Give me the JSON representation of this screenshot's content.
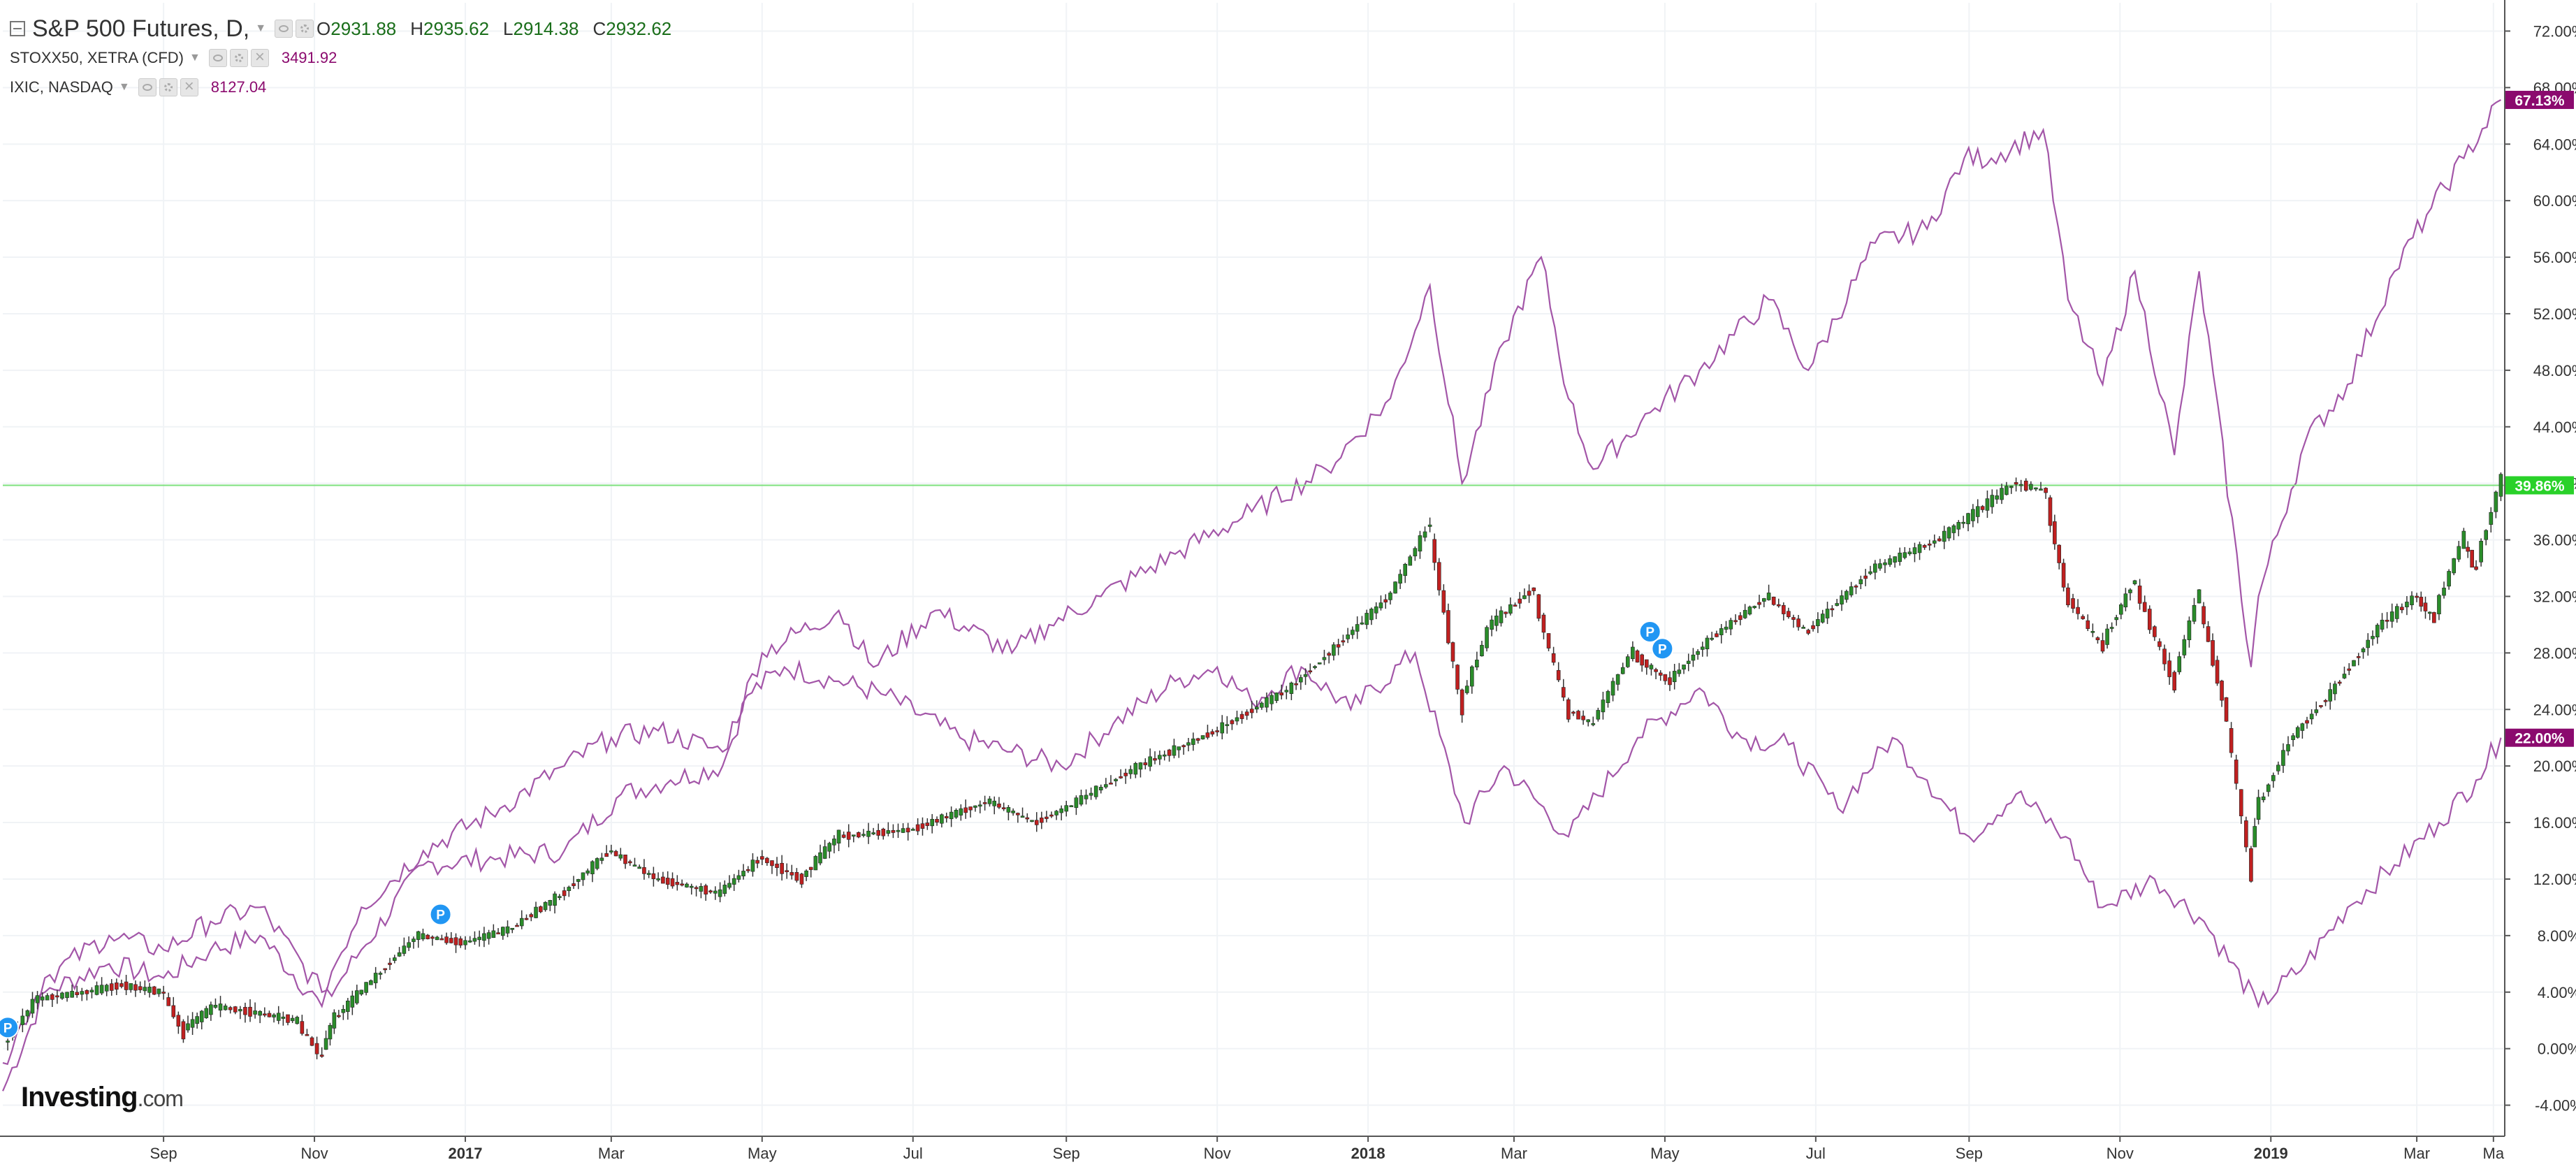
{
  "legend": {
    "main": {
      "title": "S&P 500 Futures, D,",
      "open_label": "O",
      "open": "2931.88",
      "high_label": "H",
      "high": "2935.62",
      "low_label": "L",
      "low": "2914.38",
      "close_label": "C",
      "close": "2932.62"
    },
    "compare1": {
      "name": "STOXX50, XETRA (CFD)",
      "value": "3491.92"
    },
    "compare2": {
      "name": "IXIC, NASDAQ",
      "value": "8127.04"
    }
  },
  "logo": {
    "brand": "Investing",
    "domain": ".com"
  },
  "colors": {
    "up": "#2a8c2a",
    "down": "#c02020",
    "compare_line": "#a356a8",
    "badge_purple": "#8b0a6e",
    "badge_green": "#29d129",
    "marker_blue": "#2196f3"
  },
  "chart_data": {
    "type": "line",
    "scale": "percent",
    "ylim": [
      -6,
      74
    ],
    "yticks": [
      -4,
      0,
      4,
      8,
      12,
      16,
      20,
      24,
      28,
      32,
      36,
      40,
      44,
      48,
      52,
      56,
      60,
      64,
      68,
      72
    ],
    "ytick_labels": [
      "-4.00%",
      "0.00%",
      "4.00%",
      "8.00%",
      "12.00%",
      "16.00%",
      "20.00%",
      "24.00%",
      "28.00%",
      "32.00%",
      "36.00%",
      "40.00%",
      "44.00%",
      "48.00%",
      "52.00%",
      "56.00%",
      "60.00%",
      "64.00%",
      "68.00%",
      "72.00%"
    ],
    "xlim": [
      "2016-06-28",
      "2019-04-05"
    ],
    "xticks": [
      {
        "date": "2016-09-01",
        "label": "Sep",
        "bold": false
      },
      {
        "date": "2016-11-01",
        "label": "Nov",
        "bold": false
      },
      {
        "date": "2017-01-01",
        "label": "2017",
        "bold": true
      },
      {
        "date": "2017-03-01",
        "label": "Mar",
        "bold": false
      },
      {
        "date": "2017-05-01",
        "label": "May",
        "bold": false
      },
      {
        "date": "2017-07-01",
        "label": "Jul",
        "bold": false
      },
      {
        "date": "2017-09-01",
        "label": "Sep",
        "bold": false
      },
      {
        "date": "2017-11-01",
        "label": "Nov",
        "bold": false
      },
      {
        "date": "2018-01-01",
        "label": "2018",
        "bold": true
      },
      {
        "date": "2018-03-01",
        "label": "Mar",
        "bold": false
      },
      {
        "date": "2018-05-01",
        "label": "May",
        "bold": false
      },
      {
        "date": "2018-07-01",
        "label": "Jul",
        "bold": false
      },
      {
        "date": "2018-09-01",
        "label": "Sep",
        "bold": false
      },
      {
        "date": "2018-11-01",
        "label": "Nov",
        "bold": false
      },
      {
        "date": "2019-01-01",
        "label": "2019",
        "bold": true
      },
      {
        "date": "2019-03-01",
        "label": "Mar",
        "bold": false
      },
      {
        "date": "2019-04-01",
        "label": "Ma",
        "bold": false
      }
    ],
    "grid": true,
    "series": [
      {
        "name": "S&P 500 Futures",
        "style": "candles",
        "last_label": "39.86%",
        "points": [
          [
            "2016-06-28",
            0.0
          ],
          [
            "2016-07-12",
            3.5
          ],
          [
            "2016-08-01",
            4.0
          ],
          [
            "2016-08-15",
            4.5
          ],
          [
            "2016-09-01",
            4.0
          ],
          [
            "2016-09-09",
            1.3
          ],
          [
            "2016-09-22",
            3.0
          ],
          [
            "2016-10-10",
            2.5
          ],
          [
            "2016-10-25",
            2.0
          ],
          [
            "2016-11-04",
            -0.5
          ],
          [
            "2016-11-09",
            2.0
          ],
          [
            "2016-11-20",
            4.0
          ],
          [
            "2016-12-13",
            8.0
          ],
          [
            "2017-01-01",
            7.5
          ],
          [
            "2017-01-20",
            8.5
          ],
          [
            "2017-02-10",
            11.0
          ],
          [
            "2017-03-01",
            14.0
          ],
          [
            "2017-03-20",
            12.0
          ],
          [
            "2017-04-14",
            11.0
          ],
          [
            "2017-05-01",
            13.5
          ],
          [
            "2017-05-17",
            12.0
          ],
          [
            "2017-06-01",
            15.0
          ],
          [
            "2017-07-01",
            15.5
          ],
          [
            "2017-08-01",
            17.5
          ],
          [
            "2017-08-20",
            16.0
          ],
          [
            "2017-09-01",
            17.0
          ],
          [
            "2017-10-01",
            20.0
          ],
          [
            "2017-11-01",
            22.5
          ],
          [
            "2017-12-01",
            25.5
          ],
          [
            "2017-12-20",
            28.5
          ],
          [
            "2018-01-10",
            32.0
          ],
          [
            "2018-01-26",
            37.0
          ],
          [
            "2018-02-08",
            24.5
          ],
          [
            "2018-02-20",
            30.0
          ],
          [
            "2018-03-09",
            32.5
          ],
          [
            "2018-03-23",
            24.0
          ],
          [
            "2018-04-02",
            23.0
          ],
          [
            "2018-04-18",
            28.0
          ],
          [
            "2018-05-03",
            26.0
          ],
          [
            "2018-05-20",
            29.0
          ],
          [
            "2018-06-12",
            32.0
          ],
          [
            "2018-06-28",
            29.5
          ],
          [
            "2018-07-25",
            34.0
          ],
          [
            "2018-08-20",
            36.0
          ],
          [
            "2018-09-20",
            40.0
          ],
          [
            "2018-10-02",
            39.5
          ],
          [
            "2018-10-11",
            32.0
          ],
          [
            "2018-10-25",
            28.5
          ],
          [
            "2018-11-07",
            33.0
          ],
          [
            "2018-11-23",
            26.0
          ],
          [
            "2018-12-03",
            32.0
          ],
          [
            "2018-12-14",
            24.0
          ],
          [
            "2018-12-24",
            13.0
          ],
          [
            "2018-12-27",
            17.0
          ],
          [
            "2019-01-10",
            22.0
          ],
          [
            "2019-01-25",
            25.0
          ],
          [
            "2019-02-15",
            30.0
          ],
          [
            "2019-03-01",
            32.0
          ],
          [
            "2019-03-08",
            30.5
          ],
          [
            "2019-03-20",
            36.0
          ],
          [
            "2019-03-25",
            34.0
          ],
          [
            "2019-04-04",
            39.86
          ]
        ]
      },
      {
        "name": "STOXX50, XETRA (CFD)",
        "style": "line",
        "last_label": "22.00%",
        "points": [
          [
            "2016-06-28",
            -3.0
          ],
          [
            "2016-07-15",
            4.0
          ],
          [
            "2016-08-10",
            6.0
          ],
          [
            "2016-09-01",
            5.0
          ],
          [
            "2016-09-20",
            7.0
          ],
          [
            "2016-10-10",
            8.0
          ],
          [
            "2016-11-04",
            3.0
          ],
          [
            "2016-11-20",
            7.0
          ],
          [
            "2016-12-15",
            13.0
          ],
          [
            "2017-01-15",
            13.5
          ],
          [
            "2017-02-10",
            14.0
          ],
          [
            "2017-03-05",
            18.0
          ],
          [
            "2017-03-25",
            19.0
          ],
          [
            "2017-04-15",
            20.0
          ],
          [
            "2017-04-25",
            25.0
          ],
          [
            "2017-05-10",
            27.0
          ],
          [
            "2017-06-01",
            26.0
          ],
          [
            "2017-06-20",
            25.0
          ],
          [
            "2017-07-20",
            22.0
          ],
          [
            "2017-08-10",
            21.0
          ],
          [
            "2017-08-30",
            20.0
          ],
          [
            "2017-09-20",
            23.0
          ],
          [
            "2017-10-15",
            26.0
          ],
          [
            "2017-11-01",
            27.0
          ],
          [
            "2017-11-15",
            24.5
          ],
          [
            "2017-12-05",
            27.0
          ],
          [
            "2017-12-25",
            24.0
          ],
          [
            "2018-01-20",
            28.0
          ],
          [
            "2018-02-09",
            16.0
          ],
          [
            "2018-02-25",
            20.0
          ],
          [
            "2018-03-23",
            15.0
          ],
          [
            "2018-04-20",
            22.0
          ],
          [
            "2018-05-15",
            25.5
          ],
          [
            "2018-06-01",
            22.0
          ],
          [
            "2018-06-20",
            21.5
          ],
          [
            "2018-07-10",
            17.0
          ],
          [
            "2018-08-01",
            22.0
          ],
          [
            "2018-08-15",
            19.0
          ],
          [
            "2018-09-01",
            15.0
          ],
          [
            "2018-09-20",
            18.0
          ],
          [
            "2018-10-10",
            15.0
          ],
          [
            "2018-10-25",
            10.0
          ],
          [
            "2018-11-15",
            12.0
          ],
          [
            "2018-12-05",
            9.0
          ],
          [
            "2018-12-27",
            3.0
          ],
          [
            "2019-01-15",
            6.0
          ],
          [
            "2019-02-01",
            10.0
          ],
          [
            "2019-02-20",
            13.0
          ],
          [
            "2019-03-10",
            16.0
          ],
          [
            "2019-03-25",
            19.0
          ],
          [
            "2019-04-04",
            22.0
          ]
        ]
      },
      {
        "name": "IXIC, NASDAQ",
        "style": "line",
        "last_label": "67.13%",
        "points": [
          [
            "2016-06-28",
            -1.0
          ],
          [
            "2016-07-15",
            5.0
          ],
          [
            "2016-08-10",
            8.0
          ],
          [
            "2016-09-01",
            7.0
          ],
          [
            "2016-09-20",
            9.0
          ],
          [
            "2016-10-10",
            10.0
          ],
          [
            "2016-11-04",
            4.0
          ],
          [
            "2016-11-20",
            10.0
          ],
          [
            "2016-12-15",
            14.0
          ],
          [
            "2017-01-15",
            17.0
          ],
          [
            "2017-02-10",
            20.0
          ],
          [
            "2017-03-01",
            22.0
          ],
          [
            "2017-03-20",
            22.5
          ],
          [
            "2017-04-15",
            21.0
          ],
          [
            "2017-05-01",
            28.0
          ],
          [
            "2017-06-01",
            31.0
          ],
          [
            "2017-06-15",
            27.0
          ],
          [
            "2017-07-10",
            31.0
          ],
          [
            "2017-08-10",
            28.0
          ],
          [
            "2017-08-25",
            30.0
          ],
          [
            "2017-09-15",
            32.0
          ],
          [
            "2017-10-15",
            35.0
          ],
          [
            "2017-11-15",
            38.0
          ],
          [
            "2017-12-15",
            41.0
          ],
          [
            "2018-01-10",
            46.0
          ],
          [
            "2018-01-26",
            54.0
          ],
          [
            "2018-02-08",
            40.0
          ],
          [
            "2018-02-25",
            50.0
          ],
          [
            "2018-03-12",
            56.0
          ],
          [
            "2018-03-23",
            46.0
          ],
          [
            "2018-04-02",
            41.0
          ],
          [
            "2018-04-25",
            45.0
          ],
          [
            "2018-05-15",
            48.0
          ],
          [
            "2018-06-12",
            53.0
          ],
          [
            "2018-06-28",
            48.0
          ],
          [
            "2018-07-25",
            57.0
          ],
          [
            "2018-08-15",
            58.0
          ],
          [
            "2018-08-30",
            63.0
          ],
          [
            "2018-09-10",
            63.0
          ],
          [
            "2018-10-01",
            65.0
          ],
          [
            "2018-10-11",
            53.0
          ],
          [
            "2018-10-25",
            47.0
          ],
          [
            "2018-11-07",
            55.0
          ],
          [
            "2018-11-23",
            42.0
          ],
          [
            "2018-12-03",
            55.0
          ],
          [
            "2018-12-24",
            27.0
          ],
          [
            "2018-12-27",
            32.0
          ],
          [
            "2019-01-15",
            43.0
          ],
          [
            "2019-02-01",
            47.0
          ],
          [
            "2019-02-20",
            55.0
          ],
          [
            "2019-03-05",
            59.0
          ],
          [
            "2019-03-20",
            63.0
          ],
          [
            "2019-04-04",
            67.13
          ]
        ]
      }
    ],
    "markers": [
      {
        "date": "2016-06-30",
        "value": 1.5,
        "label": "P"
      },
      {
        "date": "2016-12-22",
        "value": 9.5,
        "label": "P"
      },
      {
        "date": "2018-04-25",
        "value": 29.5,
        "label": "P"
      },
      {
        "date": "2018-04-30",
        "value": 28.3,
        "label": "P"
      }
    ]
  }
}
